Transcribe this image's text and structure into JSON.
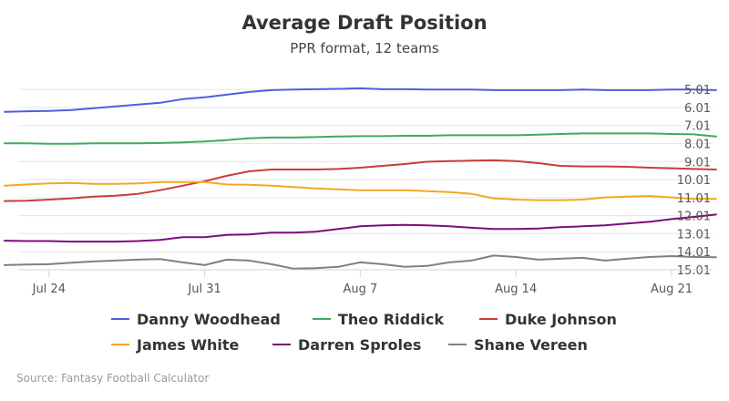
{
  "chart_data": {
    "type": "line",
    "title": "Average Draft Position",
    "subtitle": "PPR format, 12 teams",
    "xlabel": "",
    "ylabel": "",
    "x_tick_labels": [
      "Jul 24",
      "Jul 31",
      "Aug 7",
      "Aug 14",
      "Aug 21"
    ],
    "x": [
      "Jul 22",
      "Jul 23",
      "Jul 24",
      "Jul 25",
      "Jul 26",
      "Jul 27",
      "Jul 28",
      "Jul 29",
      "Jul 30",
      "Jul 31",
      "Aug 1",
      "Aug 2",
      "Aug 3",
      "Aug 4",
      "Aug 5",
      "Aug 6",
      "Aug 7",
      "Aug 8",
      "Aug 9",
      "Aug 10",
      "Aug 11",
      "Aug 12",
      "Aug 13",
      "Aug 14",
      "Aug 15",
      "Aug 16",
      "Aug 17",
      "Aug 18",
      "Aug 19",
      "Aug 20",
      "Aug 21",
      "Aug 22",
      "Aug 23"
    ],
    "y_tick_labels": [
      "5.01",
      "6.01",
      "7.01",
      "8.01",
      "9.01",
      "10.01",
      "11.01",
      "12.01",
      "13.01",
      "14.01",
      "15.01"
    ],
    "ylim": [
      15.01,
      4.6
    ],
    "y_reversed": true,
    "grid": true,
    "legend_position": "bottom",
    "series": [
      {
        "name": "Danny Woodhead",
        "color": "#4f5ee0",
        "values": [
          6.25,
          6.22,
          6.2,
          6.15,
          6.05,
          5.95,
          5.85,
          5.75,
          5.55,
          5.45,
          5.3,
          5.15,
          5.05,
          5.02,
          5.0,
          4.98,
          4.95,
          5.0,
          5.0,
          5.02,
          5.02,
          5.02,
          5.05,
          5.05,
          5.05,
          5.05,
          5.02,
          5.05,
          5.05,
          5.05,
          5.02,
          5.02,
          5.05
        ]
      },
      {
        "name": "Theo Riddick",
        "color": "#3faa5f",
        "values": [
          8.0,
          8.0,
          8.02,
          8.02,
          8.0,
          8.0,
          8.0,
          7.98,
          7.95,
          7.9,
          7.82,
          7.72,
          7.68,
          7.68,
          7.65,
          7.62,
          7.6,
          7.6,
          7.58,
          7.58,
          7.55,
          7.55,
          7.55,
          7.55,
          7.52,
          7.48,
          7.45,
          7.45,
          7.45,
          7.45,
          7.48,
          7.5,
          7.62
        ]
      },
      {
        "name": "Duke Johnson",
        "color": "#c63e3a",
        "values": [
          11.2,
          11.18,
          11.12,
          11.05,
          10.95,
          10.9,
          10.8,
          10.6,
          10.35,
          10.1,
          9.8,
          9.55,
          9.45,
          9.45,
          9.45,
          9.42,
          9.35,
          9.25,
          9.15,
          9.02,
          8.98,
          8.96,
          8.94,
          8.98,
          9.1,
          9.25,
          9.28,
          9.28,
          9.3,
          9.35,
          9.38,
          9.42,
          9.45
        ]
      },
      {
        "name": "James White",
        "color": "#f5a623",
        "values": [
          10.35,
          10.28,
          10.22,
          10.2,
          10.25,
          10.25,
          10.22,
          10.15,
          10.15,
          10.15,
          10.28,
          10.3,
          10.35,
          10.42,
          10.5,
          10.55,
          10.6,
          10.6,
          10.6,
          10.65,
          10.7,
          10.8,
          11.05,
          11.12,
          11.15,
          11.15,
          11.12,
          11.0,
          10.95,
          10.92,
          11.0,
          11.08,
          11.08
        ]
      },
      {
        "name": "Darren Sproles",
        "color": "#7a0f7a",
        "values": [
          13.4,
          13.42,
          13.42,
          13.45,
          13.45,
          13.45,
          13.42,
          13.35,
          13.2,
          13.2,
          13.08,
          13.05,
          12.95,
          12.95,
          12.9,
          12.75,
          12.6,
          12.55,
          12.52,
          12.55,
          12.6,
          12.68,
          12.75,
          12.75,
          12.72,
          12.65,
          12.6,
          12.55,
          12.45,
          12.35,
          12.2,
          12.08,
          11.95
        ]
      },
      {
        "name": "Shane Vereen",
        "color": "#808080",
        "values": [
          14.75,
          14.72,
          14.7,
          14.62,
          14.55,
          14.5,
          14.45,
          14.42,
          14.6,
          14.75,
          14.45,
          14.5,
          14.7,
          14.95,
          14.92,
          14.85,
          14.6,
          14.7,
          14.85,
          14.8,
          14.6,
          14.5,
          14.22,
          14.3,
          14.45,
          14.4,
          14.35,
          14.5,
          14.4,
          14.3,
          14.25,
          14.3,
          14.32
        ]
      }
    ]
  },
  "credits": "Source: Fantasy Football Calculator"
}
